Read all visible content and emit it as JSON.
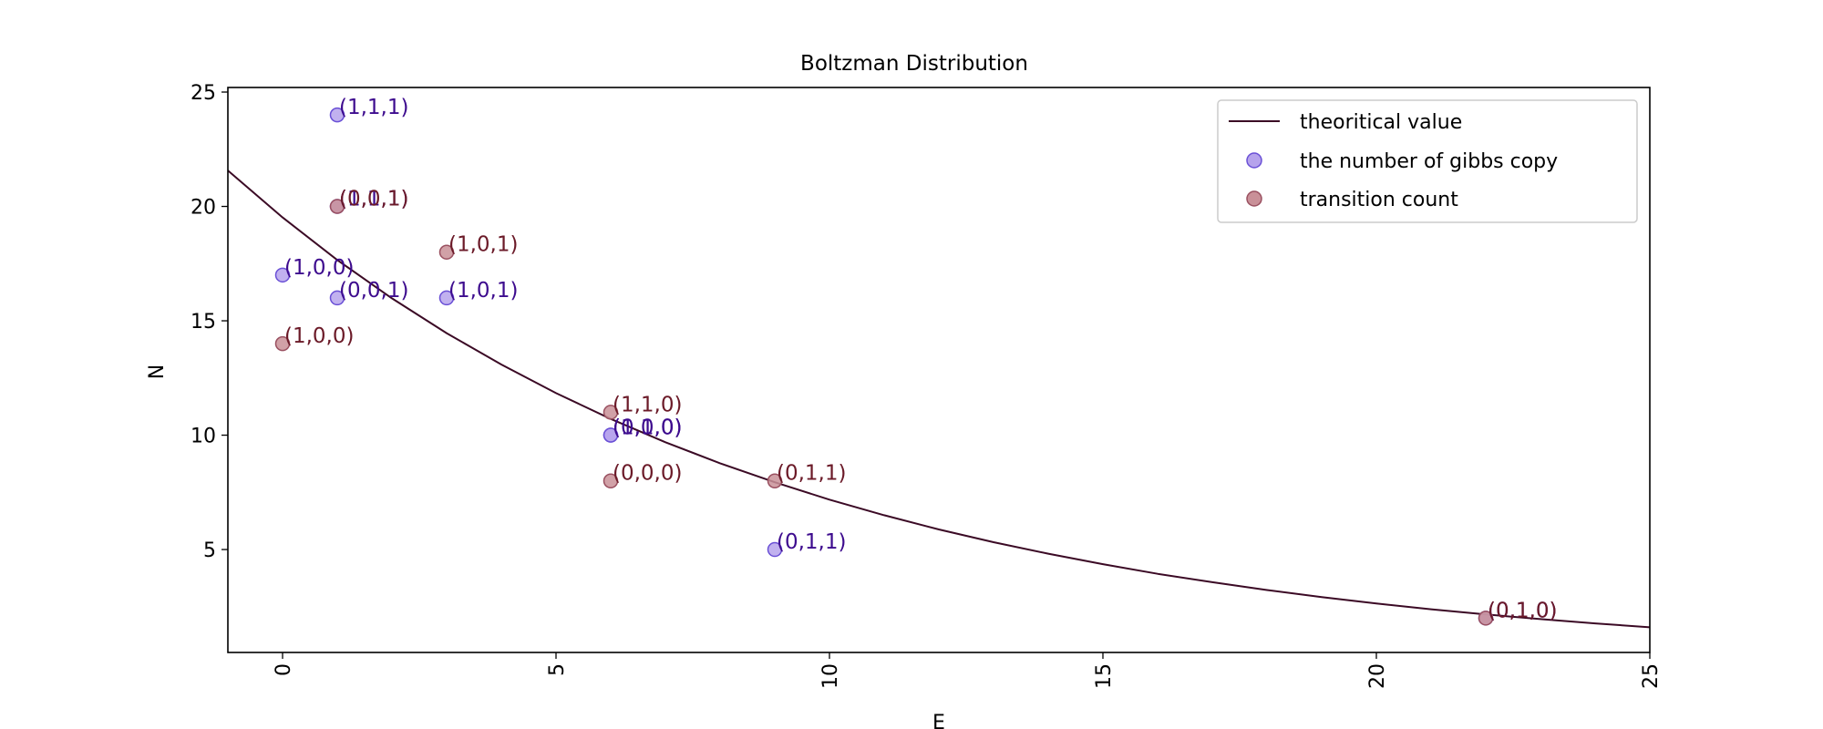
{
  "chart_data": {
    "type": "scatter",
    "title": "Boltzman Distribution",
    "xlabel": "E",
    "ylabel": "N",
    "xlim": [
      -1,
      25
    ],
    "ylim": [
      0.5,
      25.2
    ],
    "xticks": [
      0,
      5,
      10,
      15,
      20,
      25
    ],
    "yticks": [
      5,
      10,
      15,
      20,
      25
    ],
    "grid": false,
    "legend_position": "top-right",
    "line": {
      "name": "theoritical value",
      "color": "#3b0a25",
      "function": "N = 19.52 * exp(-E / 10)",
      "x": [
        -1,
        0,
        1,
        2,
        3,
        4,
        5,
        6,
        7,
        8,
        9,
        10,
        11,
        12,
        13,
        14,
        15,
        16,
        17,
        18,
        19,
        20,
        21,
        22,
        23,
        24,
        25
      ],
      "y": [
        21.57,
        19.52,
        17.66,
        15.98,
        14.46,
        13.09,
        11.84,
        10.71,
        9.69,
        8.77,
        7.94,
        7.18,
        6.5,
        5.88,
        5.32,
        4.82,
        4.36,
        3.94,
        3.57,
        3.23,
        2.92,
        2.64,
        2.39,
        2.16,
        1.96,
        1.77,
        1.6
      ]
    },
    "series": [
      {
        "name": "the number of gibbs copy",
        "fill": "#b6a3ec",
        "stroke": "#6a50d6",
        "label_color": "#3d0b8e",
        "points": [
          {
            "x": 1,
            "y": 24,
            "label": "(1,1,1)"
          },
          {
            "x": 1,
            "y": 20,
            "label": "(1,1,1)"
          },
          {
            "x": 0,
            "y": 17,
            "label": "(1,0,0)"
          },
          {
            "x": 1,
            "y": 16,
            "label": "(0,0,1)"
          },
          {
            "x": 3,
            "y": 16,
            "label": "(1,0,1)"
          },
          {
            "x": 6,
            "y": 10,
            "label": "(0,1,0)"
          },
          {
            "x": 6,
            "y": 10,
            "label": "(1,0,0)"
          },
          {
            "x": 9,
            "y": 5,
            "label": "(0,1,1)"
          },
          {
            "x": 22,
            "y": 2,
            "label": "(0,1,0)"
          }
        ]
      },
      {
        "name": "transition count",
        "fill": "#c99098",
        "stroke": "#9a5060",
        "label_color": "#6b1a28",
        "points": [
          {
            "x": 1,
            "y": 20,
            "label": "(0,0,1)"
          },
          {
            "x": 3,
            "y": 18,
            "label": "(1,0,1)"
          },
          {
            "x": 0,
            "y": 14,
            "label": "(1,0,0)"
          },
          {
            "x": 6,
            "y": 11,
            "label": "(1,1,0)"
          },
          {
            "x": 6,
            "y": 8,
            "label": "(0,0,0)"
          },
          {
            "x": 9,
            "y": 8,
            "label": "(0,1,1)"
          },
          {
            "x": 22,
            "y": 2,
            "label": "(0,1,0)"
          }
        ]
      }
    ]
  }
}
